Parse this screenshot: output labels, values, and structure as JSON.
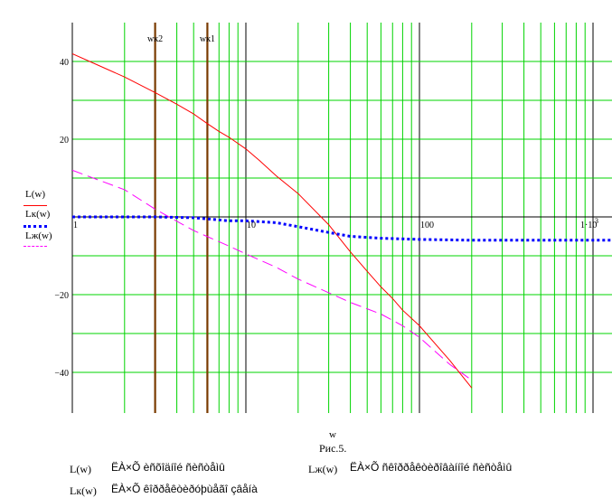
{
  "chart_data": {
    "type": "line",
    "xscale": "log",
    "xlim": [
      1,
      3000
    ],
    "ylim": [
      -50,
      50
    ],
    "grid": true,
    "x_ticks": [
      "1",
      "10",
      "100",
      "1·10"
    ],
    "x_tick_superscript": "3",
    "y_ticks": [
      {
        "value": 40,
        "label": "40"
      },
      {
        "value": 20,
        "label": "20"
      },
      {
        "value": -20,
        "label": "−20"
      },
      {
        "value": -40,
        "label": "−40"
      }
    ],
    "xlabel": "w",
    "markers": [
      {
        "label": "wк2",
        "x": 3.0
      },
      {
        "label": "wк1",
        "x": 6.0
      }
    ],
    "series": [
      {
        "name": "L(w)",
        "color": "#ff0000",
        "style": "solid",
        "x": [
          1,
          1.5,
          2,
          3,
          4,
          5,
          6,
          7,
          8,
          10,
          12,
          15,
          20,
          30,
          40,
          50,
          60,
          70,
          80,
          100,
          150,
          200
        ],
        "y": [
          42,
          38.5,
          36,
          32,
          29,
          26.5,
          24,
          22,
          20.5,
          17.5,
          14.5,
          10.5,
          6,
          -2,
          -9,
          -14,
          -18,
          -21,
          -24,
          -28,
          -37,
          -44
        ]
      },
      {
        "name": "Lк(w)",
        "color": "#0000ff",
        "style": "dotted",
        "x": [
          1,
          2,
          3,
          5,
          8,
          10,
          15,
          20,
          30,
          40,
          60,
          100,
          200,
          500,
          1000,
          3000
        ],
        "y": [
          0,
          0,
          0,
          -0.2,
          -1,
          -1,
          -1.5,
          -2.5,
          -4,
          -5,
          -5.5,
          -5.8,
          -6,
          -6,
          -6,
          -6
        ]
      },
      {
        "name": "Lж(w)",
        "color": "#ff00ff",
        "style": "dashed",
        "x": [
          1,
          2,
          3,
          5,
          8,
          10,
          15,
          20,
          30,
          40,
          60,
          80,
          100,
          150,
          200
        ],
        "y": [
          12,
          7,
          2,
          -3.5,
          -7.5,
          -9.5,
          -13,
          -16,
          -19.5,
          -22,
          -25,
          -28,
          -31,
          -38,
          -42
        ]
      }
    ]
  },
  "legend": {
    "items": [
      {
        "label": "L(w)",
        "color": "#ff0000",
        "style": "solid"
      },
      {
        "label": "Lк(w)",
        "color": "#0000ff",
        "style": "dotted"
      },
      {
        "label": "Lж(w)",
        "color": "#ff00ff",
        "style": "dashed"
      }
    ]
  },
  "caption": "Рис.5.",
  "descriptions": [
    {
      "symbol": "L(w)",
      "text": "ËÀ×Õ èñõîäíîé ñèñòåìû"
    },
    {
      "symbol": "Lж(w)",
      "text": "ËÀ×Õ ñêîððåêòèðîâàííîé ñèñòåìû"
    },
    {
      "symbol": "Lк(w)",
      "text": "ËÀ×Õ êîððåêòèðóþùåãî çâåíà"
    }
  ]
}
